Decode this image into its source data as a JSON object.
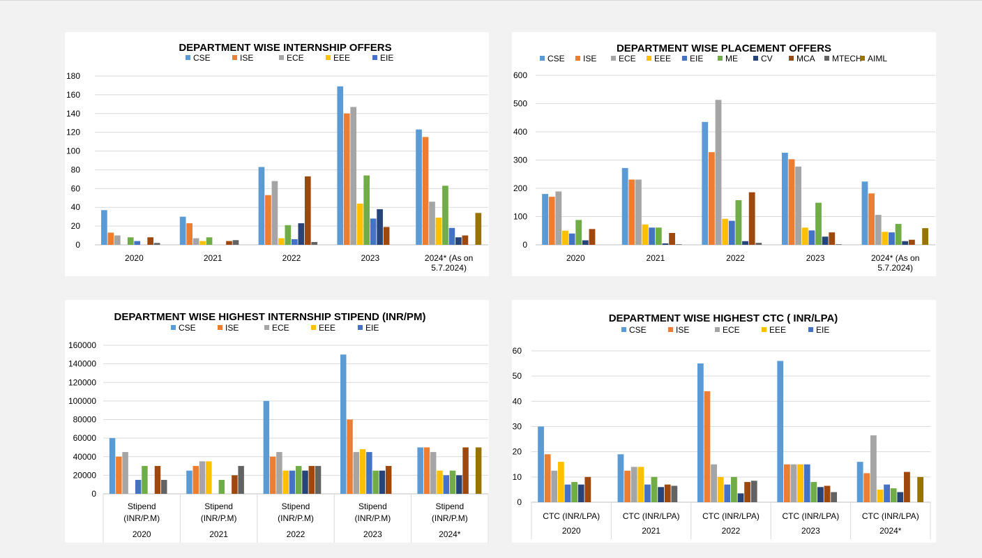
{
  "colors": {
    "CSE": "#5b9bd5",
    "ISE": "#ed7d31",
    "ECE": "#a5a5a5",
    "EEE": "#ffc000",
    "EIE": "#4472c4",
    "ME": "#70ad47",
    "CV": "#264478",
    "MCA": "#9e480e",
    "MTECH": "#636363",
    "AIML": "#997300"
  },
  "chart_data": [
    {
      "id": "internship",
      "type": "bar",
      "title": "DEPARTMENT WISE INTERNSHIP OFFERS",
      "legend": [
        "CSE",
        "ISE",
        "ECE",
        "EEE",
        "EIE"
      ],
      "categories": [
        "2020",
        "2021",
        "2022",
        "2023",
        "2024* (As on 5.7.2024)"
      ],
      "ylim": [
        0,
        180
      ],
      "yticks": [
        "0",
        "20",
        "40",
        "60",
        "80",
        "100",
        "120",
        "140",
        "160",
        "180"
      ],
      "series": [
        {
          "name": "CSE",
          "color": "CSE",
          "values": [
            37,
            30,
            83,
            169,
            123
          ]
        },
        {
          "name": "ISE",
          "color": "ISE",
          "values": [
            13,
            23,
            53,
            140,
            115
          ]
        },
        {
          "name": "ECE",
          "color": "ECE",
          "values": [
            10,
            7,
            68,
            147,
            46
          ]
        },
        {
          "name": "EEE",
          "color": "EEE",
          "values": [
            0,
            4,
            7,
            44,
            29
          ]
        },
        {
          "name": "ME",
          "color": "ME",
          "values": [
            8,
            8,
            21,
            74,
            63
          ]
        },
        {
          "name": "EIE",
          "color": "EIE",
          "values": [
            4,
            0,
            6,
            28,
            18
          ]
        },
        {
          "name": "CV",
          "color": "CV",
          "values": [
            0,
            0,
            23,
            38,
            8
          ]
        },
        {
          "name": "MCA",
          "color": "MCA",
          "values": [
            8,
            4,
            73,
            19,
            10
          ]
        },
        {
          "name": "MTECH",
          "color": "MTECH",
          "values": [
            2,
            5,
            3,
            0,
            0
          ]
        },
        {
          "name": "AIML",
          "color": "AIML",
          "values": [
            0,
            0,
            0,
            0,
            34
          ]
        }
      ]
    },
    {
      "id": "placement",
      "type": "bar",
      "title": "DEPARTMENT WISE PLACEMENT OFFERS",
      "legend": [
        "CSE",
        "ISE",
        "ECE",
        "EEE",
        "EIE",
        "ME",
        "CV",
        "MCA",
        "MTECH",
        "AIML"
      ],
      "categories": [
        "2020",
        "2021",
        "2022",
        "2023",
        "2024* (As on 5.7.2024)"
      ],
      "ylim": [
        0,
        600
      ],
      "yticks": [
        "0",
        "100",
        "200",
        "300",
        "400",
        "500",
        "600"
      ],
      "series": [
        {
          "name": "CSE",
          "color": "CSE",
          "values": [
            180,
            272,
            435,
            326,
            224
          ]
        },
        {
          "name": "ISE",
          "color": "ISE",
          "values": [
            170,
            231,
            328,
            303,
            182
          ]
        },
        {
          "name": "ECE",
          "color": "ECE",
          "values": [
            189,
            231,
            513,
            277,
            106
          ]
        },
        {
          "name": "EEE",
          "color": "EEE",
          "values": [
            50,
            72,
            92,
            61,
            46
          ]
        },
        {
          "name": "EIE",
          "color": "EIE",
          "values": [
            40,
            61,
            85,
            51,
            44
          ]
        },
        {
          "name": "ME",
          "color": "ME",
          "values": [
            88,
            61,
            158,
            149,
            74
          ]
        },
        {
          "name": "CV",
          "color": "CV",
          "values": [
            16,
            5,
            13,
            29,
            13
          ]
        },
        {
          "name": "MCA",
          "color": "MCA",
          "values": [
            56,
            42,
            186,
            44,
            18
          ]
        },
        {
          "name": "MTECH",
          "color": "MTECH",
          "values": [
            0,
            2,
            7,
            2,
            0
          ]
        },
        {
          "name": "AIML",
          "color": "AIML",
          "values": [
            0,
            0,
            0,
            0,
            59
          ]
        }
      ]
    },
    {
      "id": "stipend",
      "type": "bar",
      "title": "DEPARTMENT WISE HIGHEST INTERNSHIP STIPEND (INR/PM)",
      "legend": [
        "CSE",
        "ISE",
        "ECE",
        "EEE",
        "EIE"
      ],
      "category_label": [
        "Stipend",
        "(INR/P.M)"
      ],
      "categories": [
        "2020",
        "2021",
        "2022",
        "2023",
        "2024*"
      ],
      "ylim": [
        0,
        160000
      ],
      "yticks": [
        "0",
        "20000",
        "40000",
        "60000",
        "80000",
        "100000",
        "120000",
        "140000",
        "160000"
      ],
      "series": [
        {
          "name": "CSE",
          "color": "CSE",
          "values": [
            60000,
            25000,
            100000,
            150000,
            50000
          ]
        },
        {
          "name": "ISE",
          "color": "ISE",
          "values": [
            40000,
            30000,
            40000,
            80000,
            50000
          ]
        },
        {
          "name": "ECE",
          "color": "ECE",
          "values": [
            45000,
            35000,
            45000,
            45000,
            45000
          ]
        },
        {
          "name": "EEE",
          "color": "EEE",
          "values": [
            0,
            35000,
            25000,
            48000,
            25000
          ]
        },
        {
          "name": "EIE",
          "color": "EIE",
          "values": [
            15000,
            0,
            25000,
            45000,
            20000
          ]
        },
        {
          "name": "ME",
          "color": "ME",
          "values": [
            30000,
            15000,
            30000,
            25000,
            25000
          ]
        },
        {
          "name": "CV",
          "color": "CV",
          "values": [
            0,
            0,
            25000,
            25000,
            20000
          ]
        },
        {
          "name": "MCA",
          "color": "MCA",
          "values": [
            30000,
            20000,
            30000,
            30000,
            50000
          ]
        },
        {
          "name": "MTECH",
          "color": "MTECH",
          "values": [
            15000,
            30000,
            30000,
            0,
            0
          ]
        },
        {
          "name": "AIML",
          "color": "AIML",
          "values": [
            0,
            0,
            0,
            0,
            50000
          ]
        }
      ]
    },
    {
      "id": "ctc",
      "type": "bar",
      "title": "DEPARTMENT WISE HIGHEST CTC ( INR/LPA)",
      "legend": [
        "CSE",
        "ISE",
        "ECE",
        "EEE",
        "EIE"
      ],
      "category_label": [
        "CTC (INR/LPA)"
      ],
      "categories": [
        "2020",
        "2021",
        "2022",
        "2023",
        "2024*"
      ],
      "ylim": [
        0,
        60
      ],
      "yticks": [
        "0",
        "10",
        "20",
        "30",
        "40",
        "50",
        "60"
      ],
      "series": [
        {
          "name": "CSE",
          "color": "CSE",
          "values": [
            30,
            19,
            55,
            56,
            16
          ]
        },
        {
          "name": "ISE",
          "color": "ISE",
          "values": [
            19,
            12.5,
            44,
            15,
            11.5
          ]
        },
        {
          "name": "ECE",
          "color": "ECE",
          "values": [
            12.5,
            14,
            15,
            15,
            26.5
          ]
        },
        {
          "name": "EEE",
          "color": "EEE",
          "values": [
            16,
            14,
            10,
            15,
            5
          ]
        },
        {
          "name": "EIE",
          "color": "EIE",
          "values": [
            7,
            7,
            7,
            15,
            7
          ]
        },
        {
          "name": "ME",
          "color": "ME",
          "values": [
            8,
            10,
            10,
            8,
            5.5
          ]
        },
        {
          "name": "CV",
          "color": "CV",
          "values": [
            7,
            6,
            3.5,
            6,
            4
          ]
        },
        {
          "name": "MCA",
          "color": "MCA",
          "values": [
            10,
            7,
            8,
            6.5,
            12
          ]
        },
        {
          "name": "MTECH",
          "color": "MTECH",
          "values": [
            0,
            6.5,
            8.5,
            4,
            0
          ]
        },
        {
          "name": "AIML",
          "color": "AIML",
          "values": [
            0,
            0,
            0,
            0,
            10
          ]
        }
      ]
    }
  ]
}
